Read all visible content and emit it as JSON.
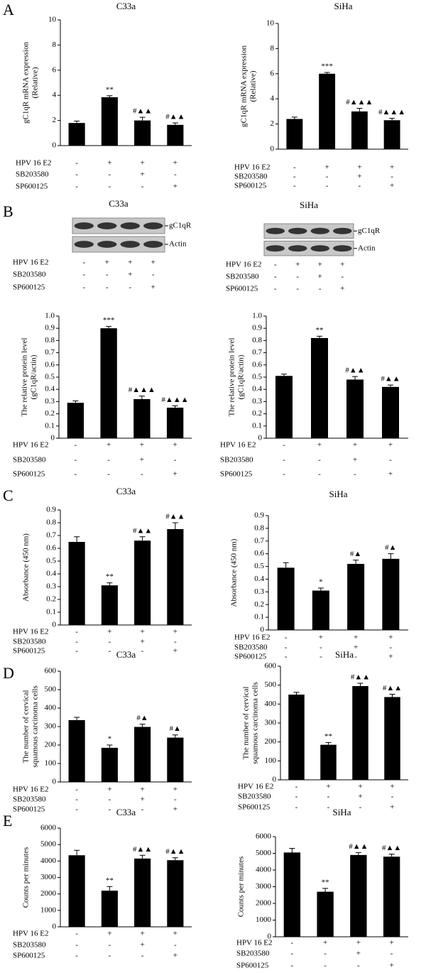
{
  "chart_data": [
    {
      "type": "bar",
      "panel": "A",
      "title": "C33a",
      "ylabel": [
        "gC1qR mRNA expression",
        "(Relative)"
      ],
      "color": "#000000",
      "ylim": [
        0,
        10
      ],
      "yticks": [
        0,
        2,
        4,
        6,
        8,
        10
      ],
      "values": [
        1.8,
        3.85,
        2.0,
        1.65
      ],
      "errors": [
        0.15,
        0.12,
        0.25,
        0.15
      ],
      "annotations": [
        null,
        "**",
        "#▲▲",
        "#▲▲"
      ],
      "conditions": [
        {
          "name": "HPV 16 E2",
          "signs": [
            "-",
            "+",
            "+",
            "+"
          ]
        },
        {
          "name": "SB203580",
          "signs": [
            "-",
            "-",
            "+",
            "-"
          ]
        },
        {
          "name": "SP600125",
          "signs": [
            "-",
            "-",
            "-",
            "+"
          ]
        }
      ]
    },
    {
      "type": "bar",
      "title": "SiHa",
      "ylabel": [
        "gC1qR mRNA expression",
        "(Relative)"
      ],
      "color": "#000000",
      "ylim": [
        0,
        10
      ],
      "yticks": [
        0,
        2,
        4,
        6,
        8,
        10
      ],
      "values": [
        2.4,
        6.0,
        3.0,
        2.3
      ],
      "errors": [
        0.15,
        0.1,
        0.25,
        0.15
      ],
      "annotations": [
        null,
        "***",
        "#▲▲▲",
        "#▲▲▲"
      ],
      "conditions": [
        {
          "name": "HPV 16 E2",
          "signs": [
            "-",
            "+",
            "+",
            "+"
          ]
        },
        {
          "name": "SB203580",
          "signs": [
            "-",
            "-",
            "+",
            "-"
          ]
        },
        {
          "name": "SP600125",
          "signs": [
            "-",
            "-",
            "-",
            "+"
          ]
        }
      ]
    },
    {
      "type": "bar",
      "ylabel": [
        "The relative protein level",
        "(gC1qR/actin)"
      ],
      "color": "#000000",
      "ylim": [
        0,
        1
      ],
      "yticks": [
        0,
        0.1,
        0.2,
        0.3,
        0.4,
        0.5,
        0.6,
        0.7,
        0.8,
        0.9,
        {
          "value": 1,
          "label": "1.0"
        }
      ],
      "values": [
        0.29,
        0.9,
        0.32,
        0.25
      ],
      "errors": [
        0.015,
        0.015,
        0.025,
        0.015
      ],
      "annotations": [
        null,
        "***",
        "#▲▲▲",
        "#▲▲▲"
      ],
      "conditions": [
        {
          "name": "HPV 16 E2",
          "signs": [
            "-",
            "+",
            "+",
            "+"
          ]
        },
        {
          "name": "SB203580",
          "signs": [
            "-",
            "-",
            "+",
            "-"
          ]
        },
        {
          "name": "SP600125",
          "signs": [
            "-",
            "-",
            "-",
            "+"
          ]
        }
      ]
    },
    {
      "type": "bar",
      "ylabel": [
        "The relative protein level",
        "(gC1qR/actin)"
      ],
      "color": "#000000",
      "ylim": [
        0,
        1
      ],
      "yticks": [
        0,
        0.1,
        0.2,
        0.3,
        0.4,
        0.5,
        0.6,
        0.7,
        0.8,
        0.9,
        {
          "value": 1,
          "label": "1.0"
        }
      ],
      "values": [
        0.51,
        0.82,
        0.48,
        0.42
      ],
      "errors": [
        0.015,
        0.015,
        0.025,
        0.015
      ],
      "annotations": [
        null,
        "**",
        "#▲▲",
        "#▲▲"
      ],
      "conditions": [
        {
          "name": "HPV 16 E2",
          "signs": [
            "-",
            "+",
            "+",
            "+"
          ]
        },
        {
          "name": "SB203580",
          "signs": [
            "-",
            "-",
            "+",
            "-"
          ]
        },
        {
          "name": "SP600125",
          "signs": [
            "-",
            "-",
            "-",
            "+"
          ]
        }
      ]
    },
    {
      "type": "bar",
      "panel": "C",
      "title": "C33a",
      "ylabel": [
        "Absorbance (450 nm)"
      ],
      "color": "#000000",
      "ylim": [
        0,
        0.9
      ],
      "yticks": [
        0,
        0.1,
        0.2,
        0.3,
        0.4,
        0.5,
        0.6,
        0.7,
        0.8,
        0.9
      ],
      "values": [
        0.65,
        0.31,
        0.66,
        0.75
      ],
      "errors": [
        0.04,
        0.02,
        0.03,
        0.05
      ],
      "annotations": [
        null,
        "**",
        "#▲▲",
        "#▲▲"
      ],
      "conditions": [
        {
          "name": "HPV 16 E2",
          "signs": [
            "-",
            "+",
            "+",
            "+"
          ]
        },
        {
          "name": "SB203580",
          "signs": [
            "-",
            "-",
            "+",
            "-"
          ]
        },
        {
          "name": "SP600125",
          "signs": [
            "-",
            "-",
            "-",
            "+"
          ]
        }
      ]
    },
    {
      "type": "bar",
      "title": "SiHa",
      "ylabel": [
        "Absorbance (450 nm)"
      ],
      "color": "#000000",
      "ylim": [
        0,
        0.9
      ],
      "yticks": [
        0,
        0.1,
        0.2,
        0.3,
        0.4,
        0.5,
        0.6,
        0.7,
        0.8,
        0.9
      ],
      "values": [
        0.49,
        0.31,
        0.52,
        0.56
      ],
      "errors": [
        0.04,
        0.02,
        0.03,
        0.04
      ],
      "annotations": [
        null,
        "*",
        "#▲",
        "#▲"
      ],
      "conditions": [
        {
          "name": "HPV 16 E2",
          "signs": [
            "-",
            "+",
            "+",
            "+"
          ]
        },
        {
          "name": "SB203580",
          "signs": [
            "-",
            "-",
            "+",
            "-"
          ]
        },
        {
          "name": "SP600125",
          "signs": [
            "-",
            "-",
            "-",
            "+"
          ]
        }
      ]
    },
    {
      "type": "bar",
      "panel": "D",
      "title": "C33a",
      "ylabel": [
        "The number of cervical",
        "squamous carcinoma cells"
      ],
      "color": "#000000",
      "ylim": [
        0,
        600
      ],
      "yticks": [
        0,
        100,
        200,
        300,
        400,
        500,
        600
      ],
      "values": [
        335,
        185,
        298,
        240
      ],
      "errors": [
        15,
        15,
        15,
        15
      ],
      "annotations": [
        null,
        "*",
        "#▲",
        "#▲"
      ],
      "conditions": [
        {
          "name": "HPV 16 E2",
          "signs": [
            "-",
            "+",
            "+",
            "+"
          ]
        },
        {
          "name": "SB203580",
          "signs": [
            "-",
            "-",
            "+",
            "-"
          ]
        },
        {
          "name": "SP600125",
          "signs": [
            "-",
            "-",
            "-",
            "+"
          ]
        }
      ]
    },
    {
      "type": "bar",
      "title": "SiHa",
      "ylabel": [
        "The number of cervical",
        "squamous carcinoma cells"
      ],
      "color": "#000000",
      "ylim": [
        0,
        600
      ],
      "yticks": [
        0,
        100,
        200,
        300,
        400,
        500,
        600
      ],
      "values": [
        450,
        185,
        495,
        437
      ],
      "errors": [
        12,
        12,
        15,
        15
      ],
      "annotations": [
        null,
        "**",
        "#▲▲",
        "#▲▲"
      ],
      "conditions": [
        {
          "name": "HPV 16 E2",
          "signs": [
            "-",
            "+",
            "+",
            "+"
          ]
        },
        {
          "name": "SB203580",
          "signs": [
            "-",
            "-",
            "+",
            "-"
          ]
        },
        {
          "name": "SP600125",
          "signs": [
            "-",
            "-",
            "-",
            "+"
          ]
        }
      ]
    },
    {
      "type": "bar",
      "panel": "E",
      "title": "C33a",
      "ylabel": [
        "Counts per minutes"
      ],
      "color": "#000000",
      "ylim": [
        0,
        6000
      ],
      "yticks": [
        0,
        1000,
        2000,
        3000,
        4000,
        5000,
        6000
      ],
      "values": [
        4350,
        2200,
        4150,
        4050
      ],
      "errors": [
        300,
        250,
        200,
        150
      ],
      "annotations": [
        null,
        "**",
        "#▲▲",
        "#▲▲"
      ],
      "conditions": [
        {
          "name": "HPV 16 E2",
          "signs": [
            "-",
            "+",
            "+",
            "+"
          ]
        },
        {
          "name": "SB203580",
          "signs": [
            "-",
            "-",
            "+",
            "-"
          ]
        },
        {
          "name": "SP600125",
          "signs": [
            "-",
            "-",
            "-",
            "+"
          ]
        }
      ]
    },
    {
      "type": "bar",
      "title": "SiHa",
      "ylabel": [
        "Counts per minutes"
      ],
      "color": "#000000",
      "ylim": [
        0,
        6000
      ],
      "yticks": [
        0,
        1000,
        2000,
        3000,
        4000,
        5000,
        6000
      ],
      "values": [
        5050,
        2700,
        4900,
        4800
      ],
      "errors": [
        250,
        200,
        150,
        150
      ],
      "annotations": [
        null,
        "**",
        "#▲▲",
        "#▲▲"
      ],
      "conditions": [
        {
          "name": "HPV 16 E2",
          "signs": [
            "-",
            "+",
            "+",
            "+"
          ]
        },
        {
          "name": "SB203580",
          "signs": [
            "-",
            "-",
            "+",
            "-"
          ]
        },
        {
          "name": "SP600125",
          "signs": [
            "-",
            "-",
            "-",
            "+"
          ]
        }
      ]
    }
  ],
  "blots": {
    "panel": "B",
    "items": [
      {
        "title": "C33a",
        "bands": [
          "gC1qR",
          "Actin"
        ],
        "conditions": [
          {
            "name": "HPV 16 E2",
            "signs": [
              "-",
              "+",
              "+",
              "+"
            ]
          },
          {
            "name": "SB203580",
            "signs": [
              "-",
              "-",
              "+",
              "-"
            ]
          },
          {
            "name": "SP600125",
            "signs": [
              "-",
              "-",
              "-",
              "+"
            ]
          }
        ]
      },
      {
        "title": "SiHa",
        "bands": [
          "gC1qR",
          "Actin"
        ],
        "conditions": [
          {
            "name": "HPV 16 E2",
            "signs": [
              "-",
              "+",
              "+",
              "+"
            ]
          },
          {
            "name": "SB203580",
            "signs": [
              "-",
              "-",
              "+",
              "-"
            ]
          },
          {
            "name": "SP600125",
            "signs": [
              "-",
              "-",
              "-",
              "+"
            ]
          }
        ]
      }
    ]
  }
}
